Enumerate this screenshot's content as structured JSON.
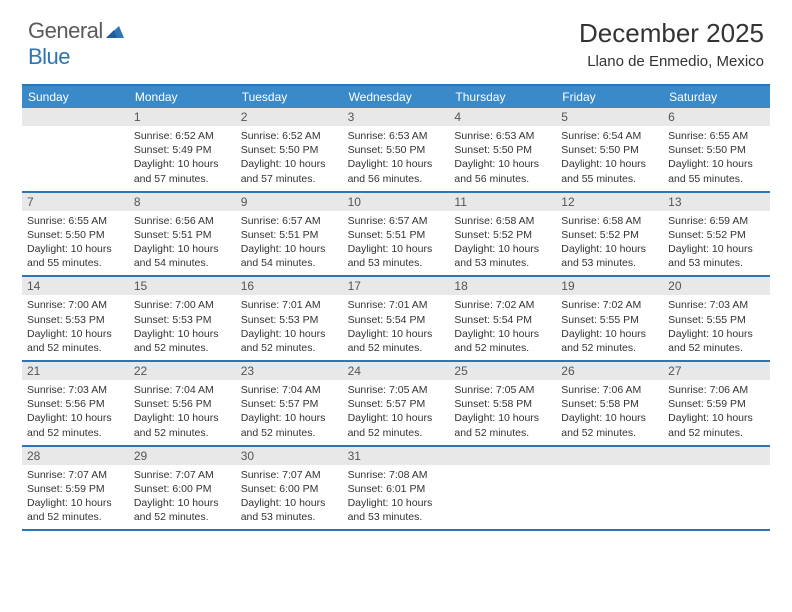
{
  "logo": {
    "text1": "General",
    "text2": "Blue"
  },
  "title": "December 2025",
  "location": "Llano de Enmedio, Mexico",
  "colors": {
    "header_bg": "#3a8ac9",
    "border": "#2e75b6",
    "daynum_bg": "#e8e8e8",
    "text": "#333333",
    "logo_gray": "#5a5a5a",
    "logo_blue": "#2e75b6"
  },
  "dayNames": [
    "Sunday",
    "Monday",
    "Tuesday",
    "Wednesday",
    "Thursday",
    "Friday",
    "Saturday"
  ],
  "weeks": [
    [
      {
        "n": "",
        "sr": "",
        "ss": "",
        "dl": ""
      },
      {
        "n": "1",
        "sr": "Sunrise: 6:52 AM",
        "ss": "Sunset: 5:49 PM",
        "dl": "Daylight: 10 hours and 57 minutes."
      },
      {
        "n": "2",
        "sr": "Sunrise: 6:52 AM",
        "ss": "Sunset: 5:50 PM",
        "dl": "Daylight: 10 hours and 57 minutes."
      },
      {
        "n": "3",
        "sr": "Sunrise: 6:53 AM",
        "ss": "Sunset: 5:50 PM",
        "dl": "Daylight: 10 hours and 56 minutes."
      },
      {
        "n": "4",
        "sr": "Sunrise: 6:53 AM",
        "ss": "Sunset: 5:50 PM",
        "dl": "Daylight: 10 hours and 56 minutes."
      },
      {
        "n": "5",
        "sr": "Sunrise: 6:54 AM",
        "ss": "Sunset: 5:50 PM",
        "dl": "Daylight: 10 hours and 55 minutes."
      },
      {
        "n": "6",
        "sr": "Sunrise: 6:55 AM",
        "ss": "Sunset: 5:50 PM",
        "dl": "Daylight: 10 hours and 55 minutes."
      }
    ],
    [
      {
        "n": "7",
        "sr": "Sunrise: 6:55 AM",
        "ss": "Sunset: 5:50 PM",
        "dl": "Daylight: 10 hours and 55 minutes."
      },
      {
        "n": "8",
        "sr": "Sunrise: 6:56 AM",
        "ss": "Sunset: 5:51 PM",
        "dl": "Daylight: 10 hours and 54 minutes."
      },
      {
        "n": "9",
        "sr": "Sunrise: 6:57 AM",
        "ss": "Sunset: 5:51 PM",
        "dl": "Daylight: 10 hours and 54 minutes."
      },
      {
        "n": "10",
        "sr": "Sunrise: 6:57 AM",
        "ss": "Sunset: 5:51 PM",
        "dl": "Daylight: 10 hours and 53 minutes."
      },
      {
        "n": "11",
        "sr": "Sunrise: 6:58 AM",
        "ss": "Sunset: 5:52 PM",
        "dl": "Daylight: 10 hours and 53 minutes."
      },
      {
        "n": "12",
        "sr": "Sunrise: 6:58 AM",
        "ss": "Sunset: 5:52 PM",
        "dl": "Daylight: 10 hours and 53 minutes."
      },
      {
        "n": "13",
        "sr": "Sunrise: 6:59 AM",
        "ss": "Sunset: 5:52 PM",
        "dl": "Daylight: 10 hours and 53 minutes."
      }
    ],
    [
      {
        "n": "14",
        "sr": "Sunrise: 7:00 AM",
        "ss": "Sunset: 5:53 PM",
        "dl": "Daylight: 10 hours and 52 minutes."
      },
      {
        "n": "15",
        "sr": "Sunrise: 7:00 AM",
        "ss": "Sunset: 5:53 PM",
        "dl": "Daylight: 10 hours and 52 minutes."
      },
      {
        "n": "16",
        "sr": "Sunrise: 7:01 AM",
        "ss": "Sunset: 5:53 PM",
        "dl": "Daylight: 10 hours and 52 minutes."
      },
      {
        "n": "17",
        "sr": "Sunrise: 7:01 AM",
        "ss": "Sunset: 5:54 PM",
        "dl": "Daylight: 10 hours and 52 minutes."
      },
      {
        "n": "18",
        "sr": "Sunrise: 7:02 AM",
        "ss": "Sunset: 5:54 PM",
        "dl": "Daylight: 10 hours and 52 minutes."
      },
      {
        "n": "19",
        "sr": "Sunrise: 7:02 AM",
        "ss": "Sunset: 5:55 PM",
        "dl": "Daylight: 10 hours and 52 minutes."
      },
      {
        "n": "20",
        "sr": "Sunrise: 7:03 AM",
        "ss": "Sunset: 5:55 PM",
        "dl": "Daylight: 10 hours and 52 minutes."
      }
    ],
    [
      {
        "n": "21",
        "sr": "Sunrise: 7:03 AM",
        "ss": "Sunset: 5:56 PM",
        "dl": "Daylight: 10 hours and 52 minutes."
      },
      {
        "n": "22",
        "sr": "Sunrise: 7:04 AM",
        "ss": "Sunset: 5:56 PM",
        "dl": "Daylight: 10 hours and 52 minutes."
      },
      {
        "n": "23",
        "sr": "Sunrise: 7:04 AM",
        "ss": "Sunset: 5:57 PM",
        "dl": "Daylight: 10 hours and 52 minutes."
      },
      {
        "n": "24",
        "sr": "Sunrise: 7:05 AM",
        "ss": "Sunset: 5:57 PM",
        "dl": "Daylight: 10 hours and 52 minutes."
      },
      {
        "n": "25",
        "sr": "Sunrise: 7:05 AM",
        "ss": "Sunset: 5:58 PM",
        "dl": "Daylight: 10 hours and 52 minutes."
      },
      {
        "n": "26",
        "sr": "Sunrise: 7:06 AM",
        "ss": "Sunset: 5:58 PM",
        "dl": "Daylight: 10 hours and 52 minutes."
      },
      {
        "n": "27",
        "sr": "Sunrise: 7:06 AM",
        "ss": "Sunset: 5:59 PM",
        "dl": "Daylight: 10 hours and 52 minutes."
      }
    ],
    [
      {
        "n": "28",
        "sr": "Sunrise: 7:07 AM",
        "ss": "Sunset: 5:59 PM",
        "dl": "Daylight: 10 hours and 52 minutes."
      },
      {
        "n": "29",
        "sr": "Sunrise: 7:07 AM",
        "ss": "Sunset: 6:00 PM",
        "dl": "Daylight: 10 hours and 52 minutes."
      },
      {
        "n": "30",
        "sr": "Sunrise: 7:07 AM",
        "ss": "Sunset: 6:00 PM",
        "dl": "Daylight: 10 hours and 53 minutes."
      },
      {
        "n": "31",
        "sr": "Sunrise: 7:08 AM",
        "ss": "Sunset: 6:01 PM",
        "dl": "Daylight: 10 hours and 53 minutes."
      },
      {
        "n": "",
        "sr": "",
        "ss": "",
        "dl": ""
      },
      {
        "n": "",
        "sr": "",
        "ss": "",
        "dl": ""
      },
      {
        "n": "",
        "sr": "",
        "ss": "",
        "dl": ""
      }
    ]
  ]
}
